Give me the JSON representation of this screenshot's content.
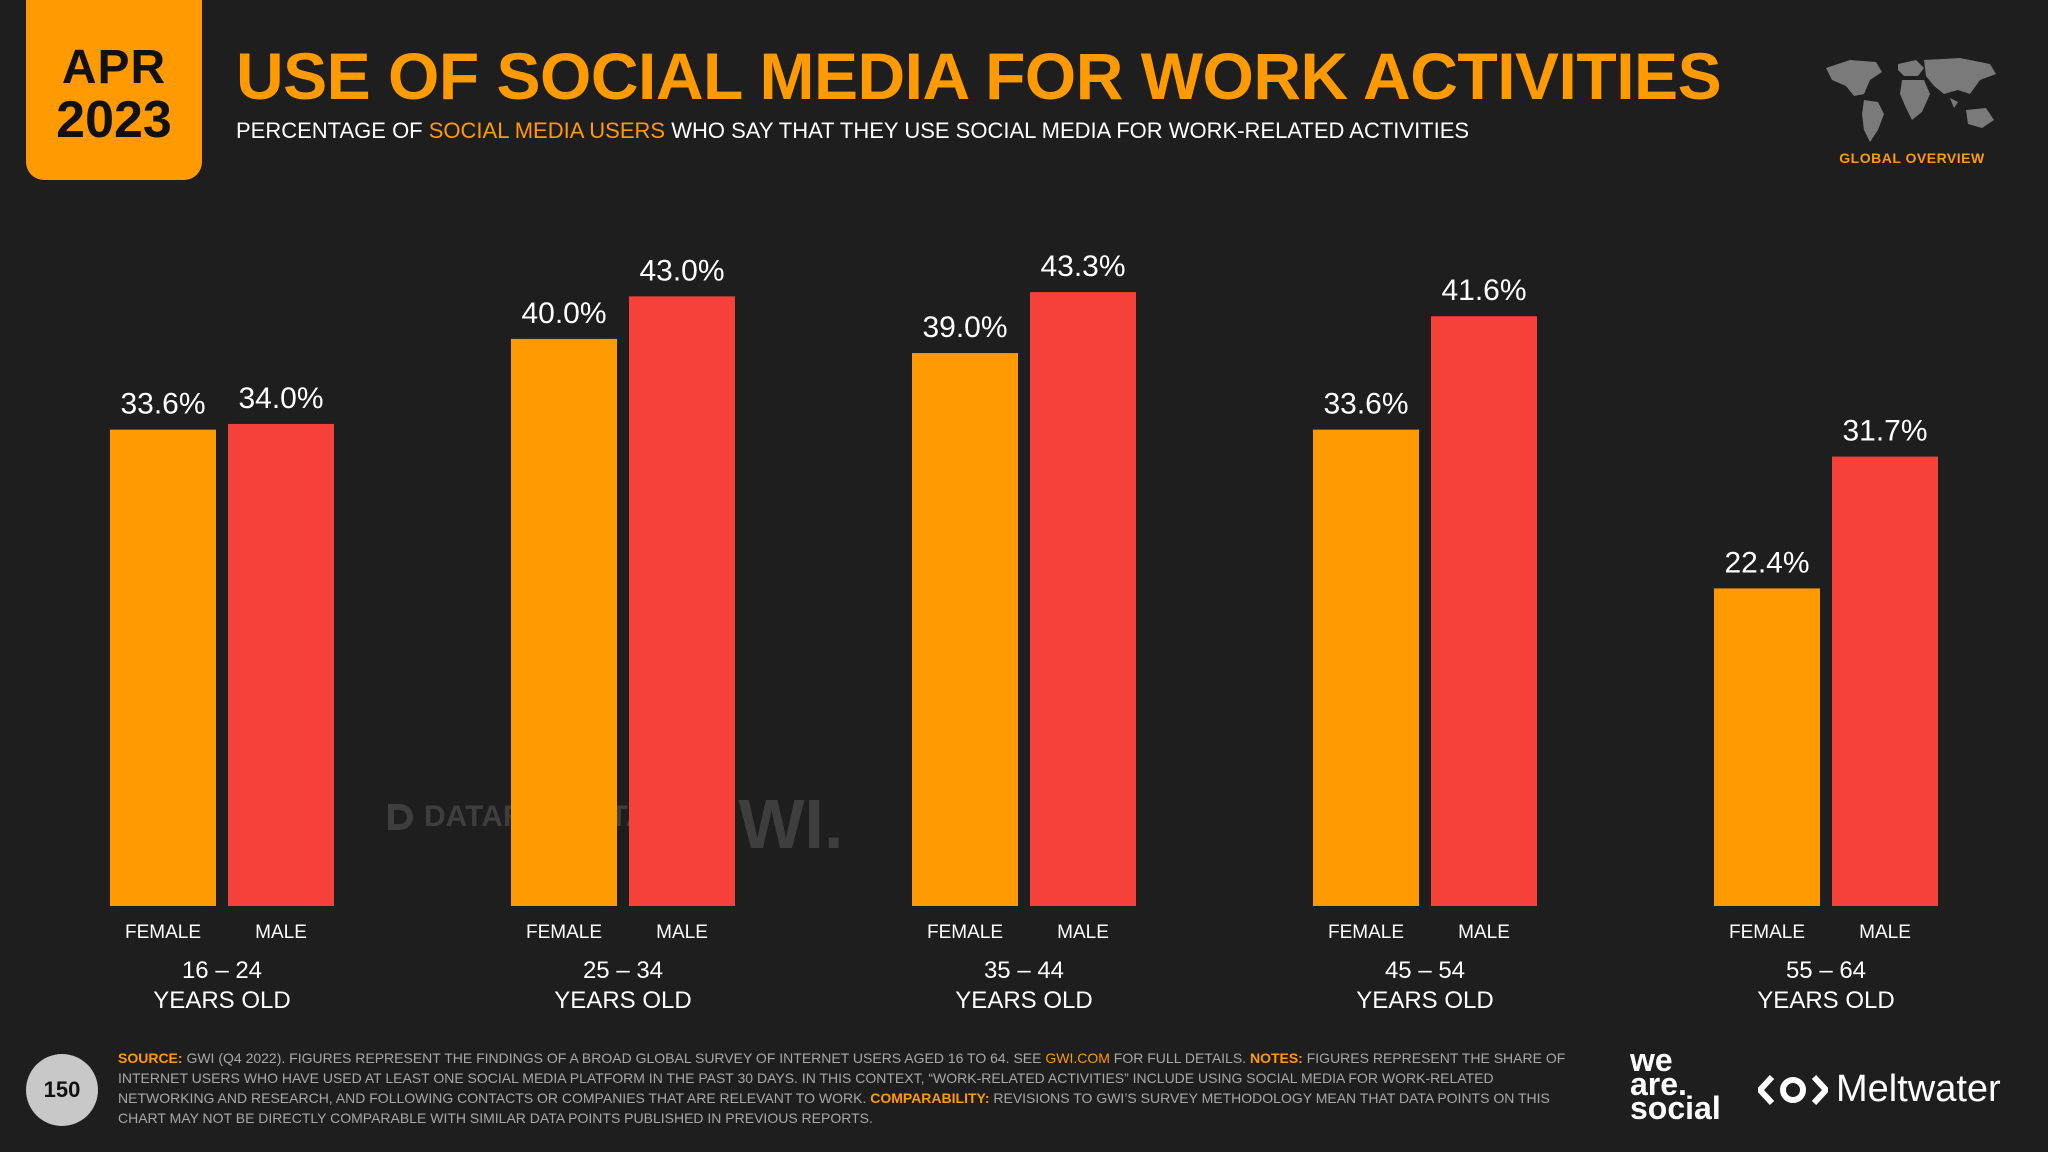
{
  "badge": {
    "month": "APR",
    "year": "2023"
  },
  "header": {
    "title": "USE OF SOCIAL MEDIA FOR WORK ACTIVITIES",
    "subtitle_pre": "PERCENTAGE OF ",
    "subtitle_hl": "SOCIAL MEDIA USERS",
    "subtitle_post": " WHO SAY THAT THEY USE SOCIAL MEDIA FOR WORK-RELATED ACTIVITIES"
  },
  "region": {
    "label": "GLOBAL OVERVIEW",
    "icon": "world-map-icon"
  },
  "watermark": {
    "datareportal": "DATAREPORTAL",
    "gwi": "GWI."
  },
  "colors": {
    "female": "#ff9a00",
    "male": "#f5413a",
    "accent": "#ff9a00",
    "background": "#1e1e1e"
  },
  "chart_data": {
    "type": "bar",
    "title": "USE OF SOCIAL MEDIA FOR WORK ACTIVITIES",
    "categories": [
      {
        "range": "16 – 24",
        "suffix": "YEARS OLD"
      },
      {
        "range": "25 – 34",
        "suffix": "YEARS OLD"
      },
      {
        "range": "35 – 44",
        "suffix": "YEARS OLD"
      },
      {
        "range": "45 – 54",
        "suffix": "YEARS OLD"
      },
      {
        "range": "55 – 64",
        "suffix": "YEARS OLD"
      }
    ],
    "series": [
      {
        "name": "FEMALE",
        "values": [
          33.6,
          40.0,
          39.0,
          33.6,
          22.4
        ],
        "labels": [
          "33.6%",
          "40.0%",
          "39.0%",
          "33.6%",
          "22.4%"
        ]
      },
      {
        "name": "MALE",
        "values": [
          34.0,
          43.0,
          43.3,
          41.6,
          31.7
        ],
        "labels": [
          "34.0%",
          "43.0%",
          "43.3%",
          "41.6%",
          "31.7%"
        ]
      }
    ],
    "ylim": [
      0,
      45
    ],
    "xlabel": "",
    "ylabel": "",
    "grid": false
  },
  "footer": {
    "page": "150",
    "source_label": "SOURCE:",
    "source_pre": " GWI (Q4 2022). FIGURES REPRESENT THE FINDINGS OF A BROAD GLOBAL SURVEY OF INTERNET USERS AGED 16 TO 64. SEE ",
    "source_link": "GWI.COM",
    "source_post": " FOR FULL DETAILS. ",
    "notes_label": "NOTES:",
    "notes_text": " FIGURES REPRESENT THE SHARE OF INTERNET USERS WHO HAVE USED AT LEAST ONE SOCIAL MEDIA PLATFORM IN THE PAST 30 DAYS. IN THIS CONTEXT, “WORK-RELATED ACTIVITIES” INCLUDE USING SOCIAL MEDIA FOR WORK-RELATED NETWORKING AND RESEARCH, AND FOLLOWING CONTACTS OR COMPANIES THAT ARE RELEVANT TO WORK. ",
    "comp_label": "COMPARABILITY:",
    "comp_text": " REVISIONS TO GWI’S SURVEY METHODOLOGY MEAN THAT DATA POINTS ON THIS CHART MAY NOT BE DIRECTLY COMPARABLE WITH SIMILAR DATA POINTS PUBLISHED IN PREVIOUS REPORTS.",
    "logo_was": [
      "we",
      "are.",
      "social"
    ],
    "logo_mw": "Meltwater"
  }
}
